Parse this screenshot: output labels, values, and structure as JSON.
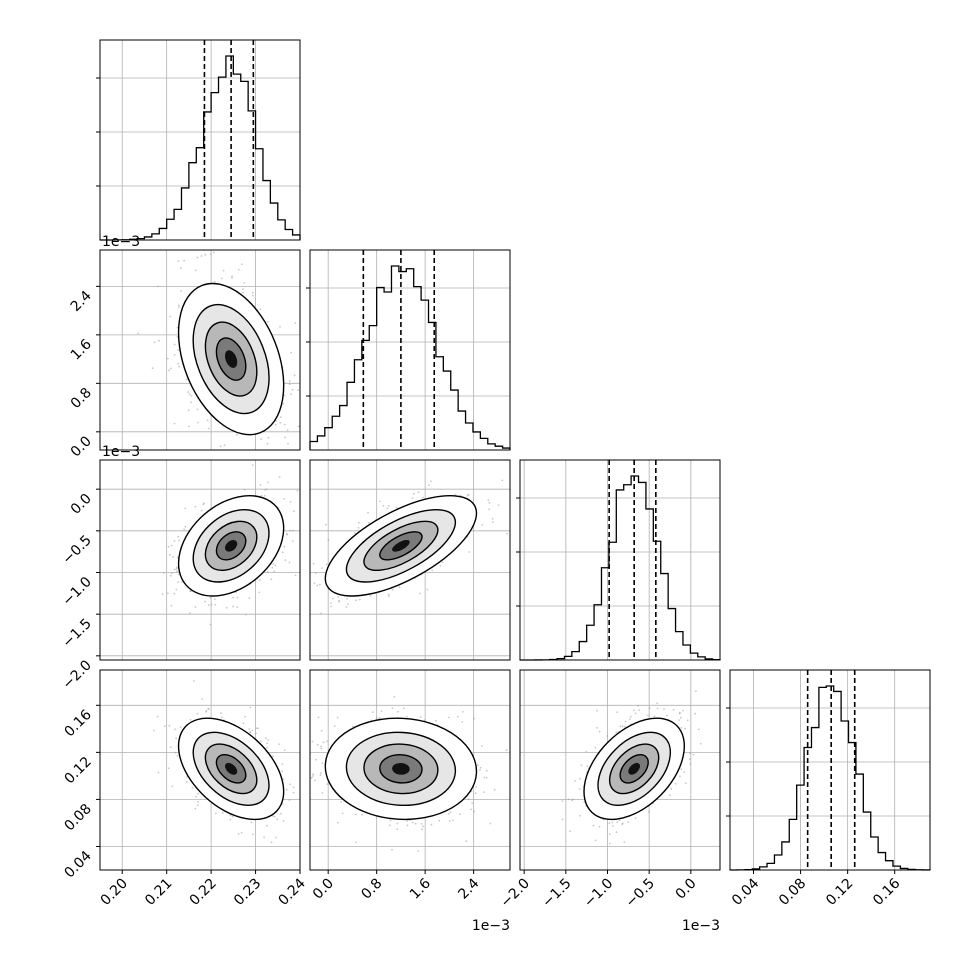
{
  "chart_data": {
    "type": "corner",
    "title": "",
    "n_params": 4,
    "parameters": [
      {
        "label": "",
        "range": [
          0.195,
          0.24
        ],
        "ticks": [
          0.2,
          0.21,
          0.22,
          0.23,
          0.24
        ],
        "tick_labels": [
          "0.20",
          "0.21",
          "0.22",
          "0.23",
          "0.24"
        ],
        "offset": "",
        "mean": 0.2245,
        "sigma": 0.0055,
        "quantiles": [
          0.2185,
          0.2245,
          0.2295
        ]
      },
      {
        "label": "",
        "range": [
          -0.0003,
          0.003
        ],
        "ticks": [
          0.0,
          0.0008,
          0.0016,
          0.0024
        ],
        "tick_labels": [
          "0.0",
          "0.8",
          "1.6",
          "2.4"
        ],
        "offset": "1e−3",
        "mean": 0.0012,
        "sigma": 0.00058,
        "quantiles": [
          0.00058,
          0.0012,
          0.00175
        ]
      },
      {
        "label": "",
        "range": [
          -0.00205,
          0.00035
        ],
        "ticks": [
          -0.002,
          -0.0015,
          -0.001,
          -0.0005,
          0.0
        ],
        "tick_labels": [
          "−2.0",
          "−1.5",
          "−1.0",
          "−0.5",
          "0.0"
        ],
        "offset": "1e−3",
        "mean": -0.00068,
        "sigma": 0.00028,
        "quantiles": [
          -0.00098,
          -0.00068,
          -0.00042
        ]
      },
      {
        "label": "",
        "range": [
          0.02,
          0.19
        ],
        "ticks": [
          0.04,
          0.08,
          0.12,
          0.16
        ],
        "tick_labels": [
          "0.04",
          "0.08",
          "0.12",
          "0.16"
        ],
        "offset": "",
        "mean": 0.106,
        "sigma": 0.02,
        "quantiles": [
          0.086,
          0.106,
          0.126
        ]
      }
    ],
    "correlations": {
      "1-0": -0.35,
      "2-0": 0.35,
      "2-1": 0.65,
      "3-0": -0.45,
      "3-1": -0.05,
      "3-2": 0.45
    },
    "quantile_line_style": "dashed",
    "histogram_style": "step",
    "density_style": "grayscale-2d-histogram-with-contours",
    "grid": true
  },
  "colors": {
    "line": "#000000",
    "grid": "#b0b0b0",
    "points": "#999999"
  }
}
